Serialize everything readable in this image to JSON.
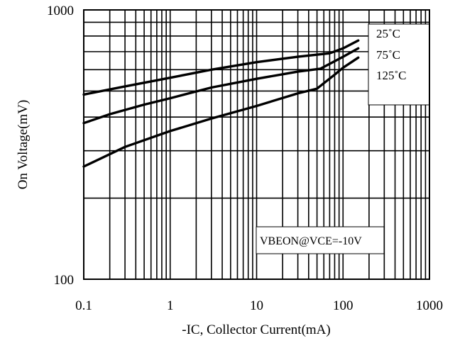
{
  "chart_data": {
    "type": "line",
    "title": "",
    "xlabel": "-IC, Collector Current(mA)",
    "ylabel": "On Voltage(mV)",
    "x_scale": "log",
    "y_scale": "log",
    "xlim": [
      0.1,
      1000
    ],
    "ylim": [
      100,
      1000
    ],
    "grid": true,
    "x_ticks": [
      "0.1",
      "1",
      "10",
      "100",
      "1000"
    ],
    "y_ticks": [
      "100",
      "1000"
    ],
    "annotation": "VBEON@VCE=-10V",
    "series": [
      {
        "name": "25˚C",
        "x": [
          0.1,
          0.3,
          1,
          3,
          10,
          30,
          70,
          100,
          150
        ],
        "y": [
          485,
          520,
          560,
          600,
          640,
          670,
          690,
          720,
          770
        ]
      },
      {
        "name": "75˚C",
        "x": [
          0.1,
          0.2,
          0.5,
          1,
          3,
          10,
          30,
          55,
          80,
          100,
          150
        ],
        "y": [
          380,
          410,
          445,
          470,
          515,
          555,
          590,
          605,
          645,
          670,
          720
        ]
      },
      {
        "name": "125˚C",
        "x": [
          0.1,
          0.3,
          1,
          3,
          10,
          30,
          50,
          80,
          100,
          150
        ],
        "y": [
          262,
          310,
          355,
          395,
          440,
          490,
          510,
          575,
          610,
          665
        ]
      }
    ]
  }
}
